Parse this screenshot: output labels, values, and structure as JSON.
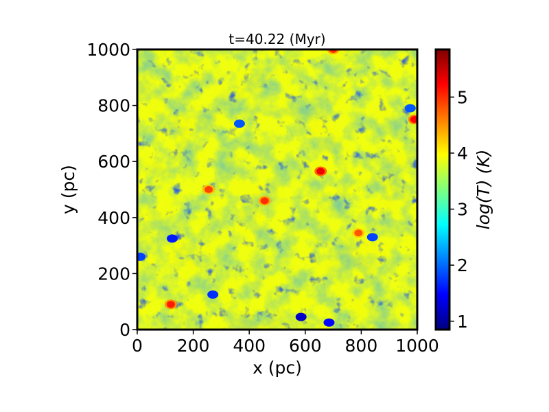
{
  "chart_data": {
    "type": "heatmap",
    "title": "t=40.22 (Myr)",
    "xlabel": "x (pc)",
    "ylabel": "y (pc)",
    "xlim": [
      0,
      1000
    ],
    "ylim": [
      0,
      1000
    ],
    "xticks": [
      0,
      200,
      400,
      600,
      800,
      1000
    ],
    "yticks": [
      0,
      200,
      400,
      600,
      800,
      1000
    ],
    "xtick_labels": [
      "0",
      "200",
      "400",
      "600",
      "800",
      "1000"
    ],
    "ytick_labels": [
      "0",
      "200",
      "400",
      "600",
      "800",
      "1000"
    ],
    "colorbar": {
      "label": "log(T) (K)",
      "range": [
        0.85,
        5.85
      ],
      "ticks": [
        1,
        2,
        3,
        4,
        5
      ],
      "tick_labels": [
        "1",
        "2",
        "3",
        "4",
        "5"
      ],
      "colormap": "jet"
    },
    "background_value": 3.9,
    "hot_regions": [
      {
        "x": 120,
        "y": 90,
        "value": 5.1
      },
      {
        "x": 255,
        "y": 500,
        "value": 4.9
      },
      {
        "x": 455,
        "y": 460,
        "value": 5.0
      },
      {
        "x": 655,
        "y": 565,
        "value": 5.3
      },
      {
        "x": 790,
        "y": 345,
        "value": 4.8
      },
      {
        "x": 700,
        "y": 1000,
        "value": 5.0
      },
      {
        "x": 990,
        "y": 750,
        "value": 5.2
      }
    ],
    "cold_regions": [
      {
        "x": 125,
        "y": 325,
        "value": 1.6
      },
      {
        "x": 585,
        "y": 45,
        "value": 1.2
      },
      {
        "x": 365,
        "y": 735,
        "value": 1.9
      },
      {
        "x": 840,
        "y": 330,
        "value": 1.8
      },
      {
        "x": 270,
        "y": 125,
        "value": 1.7
      },
      {
        "x": 975,
        "y": 790,
        "value": 1.9
      },
      {
        "x": 685,
        "y": 25,
        "value": 1.5
      },
      {
        "x": 10,
        "y": 260,
        "value": 1.8
      }
    ]
  }
}
